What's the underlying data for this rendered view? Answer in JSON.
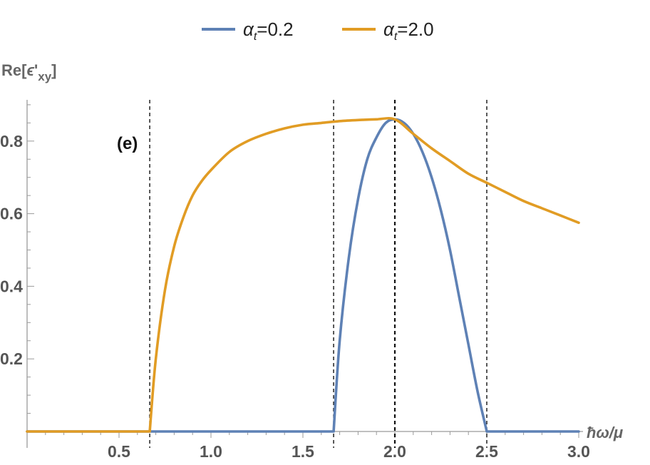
{
  "chart_data": {
    "type": "line",
    "xlabel": "ħω/μ",
    "ylabel": "Re[ϵ'xy]",
    "xlim": [
      0,
      3.0
    ],
    "ylim": [
      0,
      0.9
    ],
    "x_ticks": [
      "0.5",
      "1.0",
      "1.5",
      "2.0",
      "2.5",
      "3.0"
    ],
    "y_ticks": [
      "0.2",
      "0.4",
      "0.6",
      "0.8"
    ],
    "annotation": "(e)",
    "legend_position": "top-center",
    "vlines": [
      0.667,
      1.667,
      2.0,
      2.5
    ],
    "series": [
      {
        "name": "αt=0.2",
        "legend_label": {
          "symbol": "α",
          "sub": "t",
          "value": "=0.2"
        },
        "color": "#5e81b5",
        "x": [
          0,
          1.667,
          1.7,
          1.75,
          1.8,
          1.85,
          1.9,
          1.95,
          2.0,
          2.05,
          2.1,
          2.15,
          2.2,
          2.25,
          2.3,
          2.35,
          2.4,
          2.45,
          2.5,
          3.0
        ],
        "y": [
          0,
          0,
          0.25,
          0.48,
          0.64,
          0.75,
          0.81,
          0.85,
          0.86,
          0.85,
          0.82,
          0.77,
          0.7,
          0.61,
          0.5,
          0.37,
          0.24,
          0.11,
          0,
          0
        ]
      },
      {
        "name": "αt=2.0",
        "legend_label": {
          "symbol": "α",
          "sub": "t",
          "value": "=2.0"
        },
        "color": "#e19c24",
        "x": [
          0,
          0.667,
          0.7,
          0.75,
          0.8,
          0.85,
          0.9,
          0.95,
          1.0,
          1.1,
          1.2,
          1.3,
          1.4,
          1.5,
          1.6,
          1.7,
          1.8,
          1.9,
          2.0,
          2.1,
          2.2,
          2.3,
          2.4,
          2.5,
          2.6,
          2.7,
          2.8,
          2.9,
          3.0
        ],
        "y": [
          0,
          0,
          0.2,
          0.39,
          0.51,
          0.59,
          0.65,
          0.69,
          0.72,
          0.77,
          0.8,
          0.82,
          0.835,
          0.845,
          0.85,
          0.855,
          0.858,
          0.86,
          0.86,
          0.82,
          0.78,
          0.745,
          0.71,
          0.685,
          0.66,
          0.635,
          0.615,
          0.595,
          0.575
        ]
      }
    ]
  }
}
